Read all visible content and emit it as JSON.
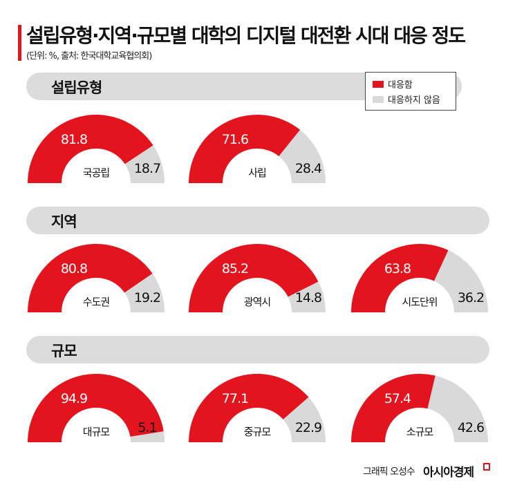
{
  "header": {
    "title": "설립유형·지역·규모별 대학의 디지털 대전환 시대 대응 정도",
    "subtitle": "(단위: %, 출처: 한국대학교육협의회)"
  },
  "colors": {
    "respond": "#e3141d",
    "not_respond": "#d9d9d9",
    "accent": "#e3141d"
  },
  "footer": {
    "credit": "그래픽 오성수",
    "brand": "아시아경제"
  },
  "chart_data": {
    "type": "pie",
    "style": "half-donut",
    "title": "설립유형·지역·규모별 대학의 디지털 대전환 시대 대응 정도",
    "unit": "%",
    "legend": {
      "placement": "top-right",
      "entries": [
        "대응함",
        "대응하지 않음"
      ]
    },
    "sections": [
      {
        "name": "설립유형",
        "charts": [
          {
            "label": "국공립",
            "values": [
              81.8,
              18.7
            ]
          },
          {
            "label": "사립",
            "values": [
              71.6,
              28.4
            ]
          }
        ]
      },
      {
        "name": "지역",
        "charts": [
          {
            "label": "수도권",
            "values": [
              80.8,
              19.2
            ]
          },
          {
            "label": "광역시",
            "values": [
              85.2,
              14.8
            ]
          },
          {
            "label": "시도단위",
            "values": [
              63.8,
              36.2
            ]
          }
        ]
      },
      {
        "name": "규모",
        "charts": [
          {
            "label": "대규모",
            "values": [
              94.9,
              5.1
            ]
          },
          {
            "label": "중규모",
            "values": [
              77.1,
              22.9
            ]
          },
          {
            "label": "소규모",
            "values": [
              57.4,
              42.6
            ]
          }
        ]
      }
    ]
  }
}
